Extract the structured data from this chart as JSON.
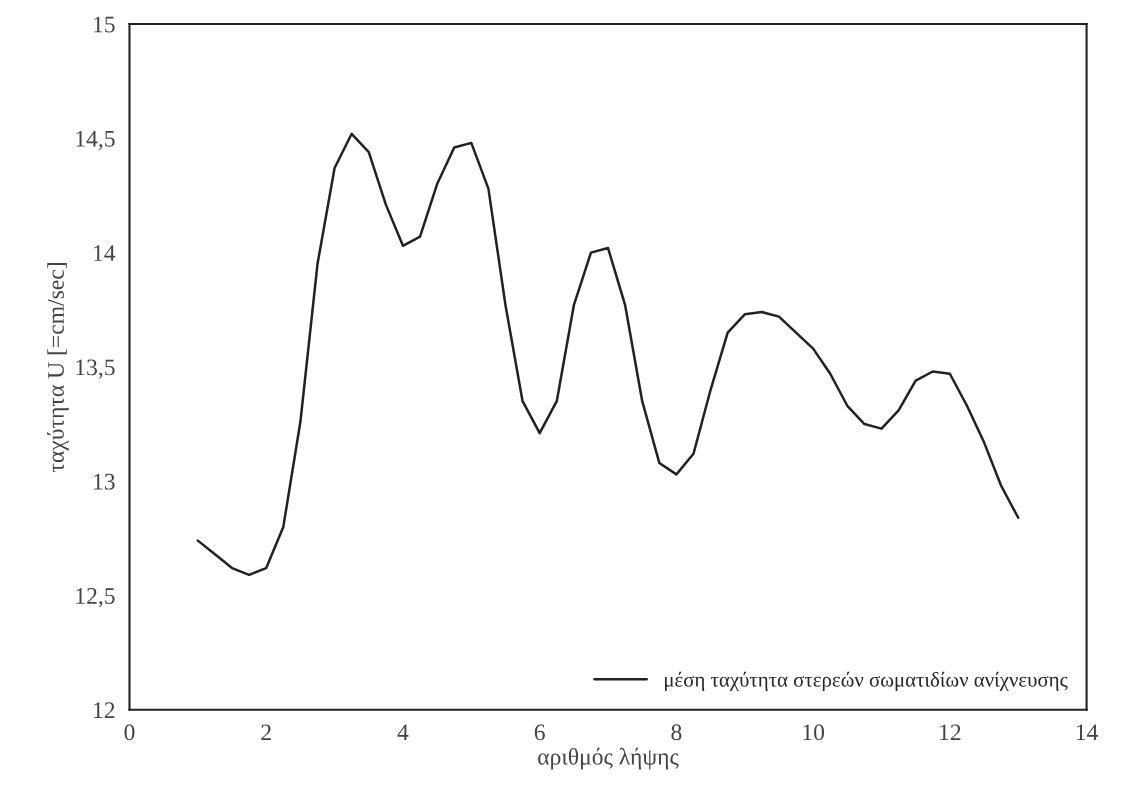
{
  "chart_data": {
    "type": "line",
    "xlabel": "αριθμός λήψης",
    "ylabel": "ταχύτητα U [=cm/sec]",
    "x": [
      1,
      1.25,
      1.5,
      1.75,
      2,
      2.25,
      2.5,
      2.75,
      3,
      3.25,
      3.5,
      3.75,
      4,
      4.25,
      4.5,
      4.75,
      5,
      5.25,
      5.5,
      5.75,
      6,
      6.25,
      6.5,
      6.75,
      7,
      7.25,
      7.5,
      7.75,
      8,
      8.25,
      8.5,
      8.75,
      9,
      9.25,
      9.5,
      9.75,
      10,
      10.25,
      10.5,
      10.75,
      11,
      11.25,
      11.5,
      11.75,
      12,
      12.25,
      12.5,
      12.75,
      13
    ],
    "series": [
      {
        "name": "μέση ταχύτητα στερεών σωματιδίων ανίχνευσης",
        "color": "#222222",
        "values": [
          12.74,
          12.68,
          12.62,
          12.59,
          12.62,
          12.8,
          13.26,
          13.95,
          14.37,
          14.52,
          14.44,
          14.21,
          14.03,
          14.07,
          14.3,
          14.46,
          14.48,
          14.28,
          13.77,
          13.35,
          13.21,
          13.35,
          13.77,
          14.0,
          14.02,
          13.77,
          13.35,
          13.08,
          13.03,
          13.12,
          13.4,
          13.65,
          13.73,
          13.74,
          13.72,
          13.65,
          13.58,
          13.47,
          13.33,
          13.25,
          13.23,
          13.31,
          13.44,
          13.48,
          13.47,
          13.33,
          13.17,
          12.98,
          12.84
        ]
      }
    ],
    "xlim": [
      0,
      14
    ],
    "xticks": [
      0,
      2,
      4,
      6,
      8,
      10,
      12,
      14
    ],
    "ylim": [
      12,
      15
    ],
    "yticks": [
      12,
      {
        "value": 12.5,
        "label": "12,5"
      },
      13,
      {
        "value": 13.5,
        "label": "13,5"
      },
      14,
      {
        "value": 14.5,
        "label": "14,5"
      },
      15
    ],
    "grid": false,
    "legend": "bottom right",
    "marker": "none",
    "line_style": "solid"
  }
}
